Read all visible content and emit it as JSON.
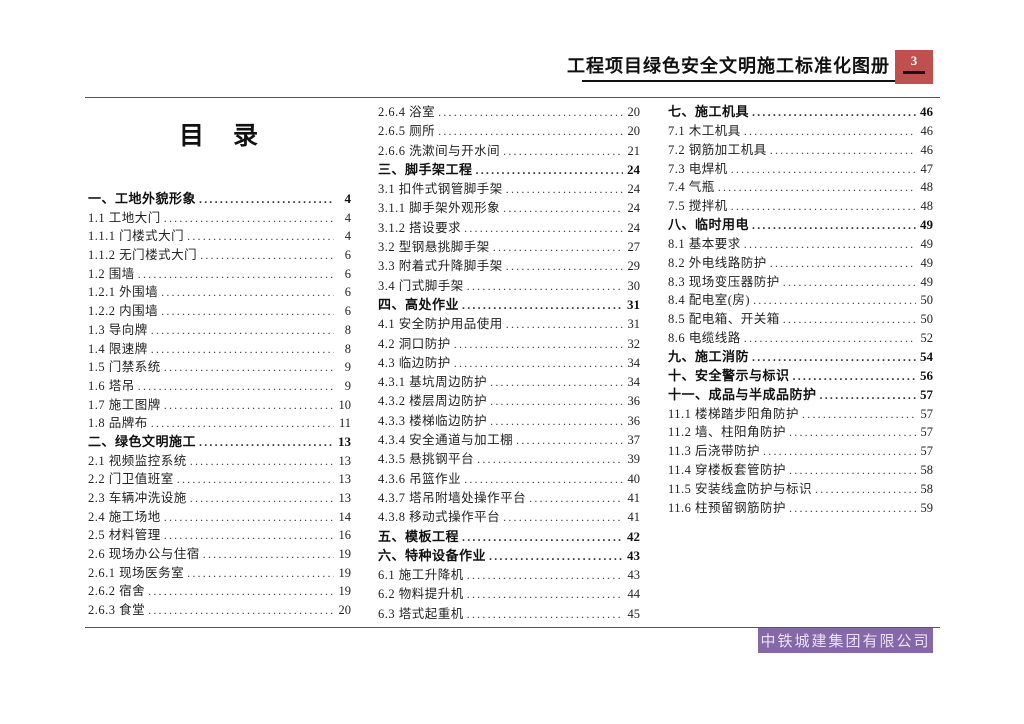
{
  "header": {
    "title": "工程项目绿色安全文明施工标准化图册",
    "page_number": "3"
  },
  "toc": {
    "title": "目　录",
    "columns": [
      {
        "entries": [
          {
            "label": "一、工地外貌形象",
            "page": "4",
            "bold": true
          },
          {
            "label": "1.1 工地大门",
            "page": "4",
            "bold": false
          },
          {
            "label": "1.1.1 门楼式大门",
            "page": "4",
            "bold": false
          },
          {
            "label": "1.1.2 无门楼式大门",
            "page": "6",
            "bold": false
          },
          {
            "label": "1.2 围墙",
            "page": "6",
            "bold": false
          },
          {
            "label": "1.2.1 外围墙",
            "page": "6",
            "bold": false
          },
          {
            "label": "1.2.2 内围墙",
            "page": "6",
            "bold": false
          },
          {
            "label": "1.3 导向牌",
            "page": "8",
            "bold": false
          },
          {
            "label": "1.4 限速牌",
            "page": "8",
            "bold": false
          },
          {
            "label": "1.5 门禁系统",
            "page": "9",
            "bold": false
          },
          {
            "label": "1.6 塔吊",
            "page": "9",
            "bold": false
          },
          {
            "label": "1.7 施工图牌",
            "page": "10",
            "bold": false
          },
          {
            "label": "1.8 品牌布",
            "page": "11",
            "bold": false
          },
          {
            "label": "二、绿色文明施工",
            "page": "13",
            "bold": true
          },
          {
            "label": "2.1 视频监控系统",
            "page": "13",
            "bold": false
          },
          {
            "label": "2.2 门卫值班室",
            "page": "13",
            "bold": false
          },
          {
            "label": "2.3 车辆冲洗设施",
            "page": "13",
            "bold": false
          },
          {
            "label": "2.4 施工场地",
            "page": "14",
            "bold": false
          },
          {
            "label": "2.5 材料管理",
            "page": "16",
            "bold": false
          },
          {
            "label": "2.6 现场办公与住宿",
            "page": "19",
            "bold": false
          },
          {
            "label": "2.6.1 现场医务室",
            "page": "19",
            "bold": false
          },
          {
            "label": "2.6.2 宿舍",
            "page": "19",
            "bold": false
          },
          {
            "label": "2.6.3 食堂",
            "page": "20",
            "bold": false
          }
        ]
      },
      {
        "entries": [
          {
            "label": "2.6.4 浴室",
            "page": "20",
            "bold": false
          },
          {
            "label": "2.6.5 厕所",
            "page": "20",
            "bold": false
          },
          {
            "label": "2.6.6 洗漱间与开水间",
            "page": "21",
            "bold": false
          },
          {
            "label": "三、脚手架工程",
            "page": "24",
            "bold": true
          },
          {
            "label": "3.1 扣件式钢管脚手架",
            "page": "24",
            "bold": false
          },
          {
            "label": "3.1.1 脚手架外观形象",
            "page": "24",
            "bold": false
          },
          {
            "label": "3.1.2 搭设要求",
            "page": "24",
            "bold": false
          },
          {
            "label": "3.2 型钢悬挑脚手架",
            "page": "27",
            "bold": false
          },
          {
            "label": "3.3 附着式升降脚手架",
            "page": "29",
            "bold": false
          },
          {
            "label": "3.4 门式脚手架",
            "page": "30",
            "bold": false
          },
          {
            "label": "四、高处作业",
            "page": "31",
            "bold": true
          },
          {
            "label": "4.1 安全防护用品使用",
            "page": "31",
            "bold": false
          },
          {
            "label": "4.2 洞口防护",
            "page": "32",
            "bold": false
          },
          {
            "label": "4.3 临边防护",
            "page": "34",
            "bold": false
          },
          {
            "label": "4.3.1 基坑周边防护",
            "page": "34",
            "bold": false
          },
          {
            "label": "4.3.2 楼层周边防护",
            "page": "36",
            "bold": false
          },
          {
            "label": "4.3.3 楼梯临边防护",
            "page": "36",
            "bold": false
          },
          {
            "label": "4.3.4 安全通道与加工棚",
            "page": "37",
            "bold": false
          },
          {
            "label": "4.3.5 悬挑钢平台",
            "page": "39",
            "bold": false
          },
          {
            "label": "4.3.6 吊篮作业",
            "page": "40",
            "bold": false
          },
          {
            "label": "4.3.7 塔吊附墙处操作平台",
            "page": "41",
            "bold": false
          },
          {
            "label": "4.3.8 移动式操作平台",
            "page": "41",
            "bold": false
          },
          {
            "label": "五、模板工程",
            "page": "42",
            "bold": true
          },
          {
            "label": "六、特种设备作业",
            "page": "43",
            "bold": true
          },
          {
            "label": "6.1 施工升降机",
            "page": "43",
            "bold": false
          },
          {
            "label": "6.2 物料提升机",
            "page": "44",
            "bold": false
          },
          {
            "label": "6.3 塔式起重机",
            "page": "45",
            "bold": false
          }
        ]
      },
      {
        "entries": [
          {
            "label": "七、施工机具",
            "page": "46",
            "bold": true
          },
          {
            "label": "7.1 木工机具",
            "page": "46",
            "bold": false
          },
          {
            "label": "7.2 钢筋加工机具",
            "page": "46",
            "bold": false
          },
          {
            "label": "7.3 电焊机",
            "page": "47",
            "bold": false
          },
          {
            "label": "7.4 气瓶",
            "page": "48",
            "bold": false
          },
          {
            "label": "7.5 搅拌机",
            "page": "48",
            "bold": false
          },
          {
            "label": "八、临时用电",
            "page": "49",
            "bold": true
          },
          {
            "label": "8.1 基本要求",
            "page": "49",
            "bold": false
          },
          {
            "label": "8.2 外电线路防护",
            "page": "49",
            "bold": false
          },
          {
            "label": "8.3 现场变压器防护",
            "page": "49",
            "bold": false
          },
          {
            "label": "8.4 配电室(房)",
            "page": "50",
            "bold": false
          },
          {
            "label": "8.5 配电箱、开关箱",
            "page": "50",
            "bold": false
          },
          {
            "label": "8.6 电缆线路",
            "page": "52",
            "bold": false
          },
          {
            "label": "九、施工消防",
            "page": "54",
            "bold": true
          },
          {
            "label": "十、安全警示与标识",
            "page": "56",
            "bold": true
          },
          {
            "label": "十一、成品与半成品防护",
            "page": "57",
            "bold": true
          },
          {
            "label": "11.1 楼梯踏步阳角防护",
            "page": "57",
            "bold": false
          },
          {
            "label": "11.2 墙、柱阳角防护",
            "page": "57",
            "bold": false
          },
          {
            "label": "11.3 后浇带防护",
            "page": "57",
            "bold": false
          },
          {
            "label": "11.4 穿楼板套管防护",
            "page": "58",
            "bold": false
          },
          {
            "label": "11.5 安装线盒防护与标识",
            "page": "58",
            "bold": false
          },
          {
            "label": "11.6 柱预留钢筋防护",
            "page": "59",
            "bold": false
          }
        ]
      }
    ]
  },
  "footer": {
    "company": "中铁城建集团有限公司"
  },
  "colors": {
    "page_badge_red": "#c0504d",
    "footer_purple": "#8468a8"
  }
}
